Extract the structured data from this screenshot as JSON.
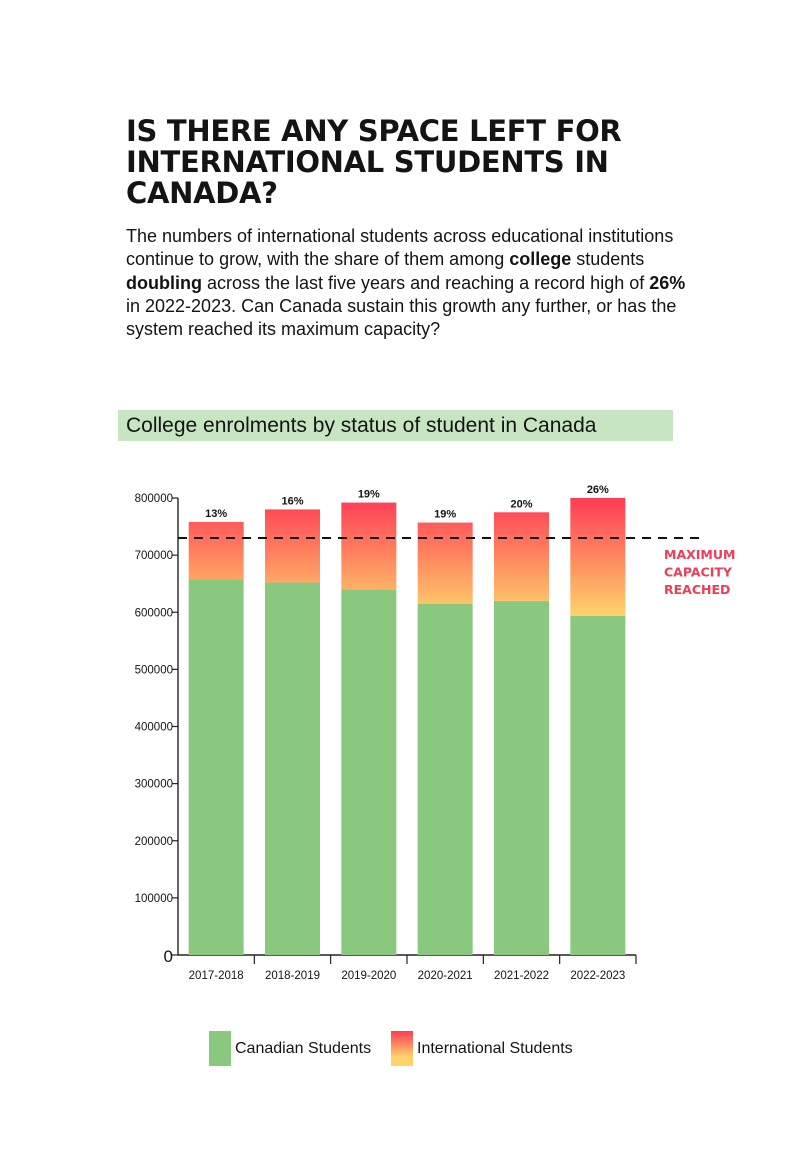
{
  "article": {
    "headline_parts": [
      "IS THERE ANY SPACE LEFT FOR",
      "INTERNATIONAL STUDENTS IN",
      "CANADA?"
    ],
    "lede_parts": {
      "p1": "The numbers of international students across educational institutions continue to grow, with the share of them among ",
      "b1": "college",
      "p2": " students ",
      "b2": "doubling",
      "p3": " across the last five years and reaching a record high of ",
      "b3": "26%",
      "p4": " in 2022-2023. Can Canada sustain this growth any further, or has the system reached its maximum capacity?"
    }
  },
  "colors": {
    "canadian": "#8bc87f",
    "international_low": "#ffd36b",
    "international_high": "#ff3b55",
    "title_bg": "#c6e5c0",
    "capacity_label": "#ef3d55"
  },
  "chart_data": {
    "type": "bar",
    "stacked": true,
    "title": "College enrolments by status of student in Canada",
    "categories": [
      "2017-2018",
      "2018-2019",
      "2019-2020",
      "2020-2021",
      "2021-2022",
      "2022-2023"
    ],
    "series": [
      {
        "name": "Canadian Students",
        "values": [
          658000,
          652000,
          640000,
          615000,
          620000,
          594000
        ]
      },
      {
        "name": "International Students",
        "values": [
          100000,
          128000,
          152000,
          142000,
          155000,
          206000
        ]
      }
    ],
    "bar_labels": [
      "13%",
      "16%",
      "19%",
      "19%",
      "20%",
      "26%"
    ],
    "ylim": [
      0,
      800000
    ],
    "yticks": [
      0,
      100000,
      200000,
      300000,
      400000,
      500000,
      600000,
      700000,
      800000
    ],
    "ytick_labels": [
      "0",
      "100000",
      "200000",
      "300000",
      "400000",
      "500000",
      "600000",
      "700000",
      "800000"
    ],
    "capacity_line": {
      "value": 730000,
      "label_lines": [
        "MAXIMUM",
        "CAPACITY",
        "REACHED"
      ]
    },
    "grid": false,
    "legend_position": "bottom"
  }
}
